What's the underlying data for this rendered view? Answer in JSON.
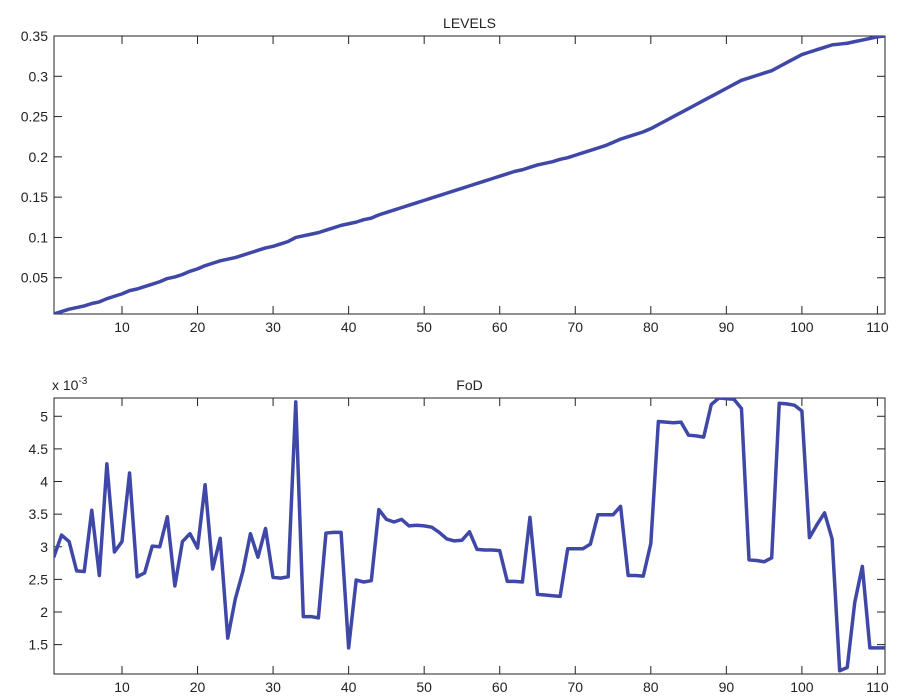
{
  "chart_data": [
    {
      "type": "line",
      "title": "LEVELS",
      "xlabel": "",
      "ylabel": "",
      "xlim": [
        1,
        111
      ],
      "ylim": [
        0.005,
        0.35
      ],
      "xticks": [
        10,
        20,
        30,
        40,
        50,
        60,
        70,
        80,
        90,
        100,
        110
      ],
      "xtick_labels": [
        "10",
        "20",
        "30",
        "40",
        "50",
        "60",
        "70",
        "80",
        "90",
        "100",
        "110"
      ],
      "yticks": [
        0.05,
        0.1,
        0.15,
        0.2,
        0.25,
        0.3,
        0.35
      ],
      "ytick_labels": [
        "0.05",
        "0.1",
        "0.15",
        "0.2",
        "0.25",
        "0.3",
        "0.35"
      ],
      "grid": false,
      "color": "#3f48a6",
      "series": [
        {
          "x": [
            1,
            2,
            3,
            4,
            5,
            6,
            7,
            8,
            9,
            10,
            11,
            12,
            13,
            14,
            15,
            16,
            17,
            18,
            19,
            20,
            21,
            22,
            23,
            24,
            25,
            26,
            27,
            28,
            29,
            30,
            31,
            32,
            33,
            34,
            35,
            36,
            37,
            38,
            39,
            40,
            41,
            42,
            43,
            44,
            45,
            46,
            47,
            48,
            49,
            50,
            51,
            52,
            53,
            54,
            55,
            56,
            57,
            58,
            59,
            60,
            61,
            62,
            63,
            64,
            65,
            66,
            67,
            68,
            69,
            70,
            71,
            72,
            73,
            74,
            75,
            76,
            77,
            78,
            79,
            80,
            81,
            82,
            83,
            84,
            85,
            86,
            87,
            88,
            89,
            90,
            91,
            92,
            93,
            94,
            95,
            96,
            97,
            98,
            99,
            100,
            101,
            102,
            103,
            104,
            105,
            106,
            107,
            108,
            109,
            110,
            111
          ],
          "y": [
            0.005,
            0.008,
            0.011,
            0.013,
            0.015,
            0.018,
            0.02,
            0.024,
            0.027,
            0.03,
            0.034,
            0.036,
            0.039,
            0.042,
            0.045,
            0.049,
            0.051,
            0.054,
            0.058,
            0.061,
            0.065,
            0.068,
            0.071,
            0.073,
            0.075,
            0.078,
            0.081,
            0.084,
            0.087,
            0.089,
            0.092,
            0.095,
            0.1,
            0.102,
            0.104,
            0.106,
            0.109,
            0.112,
            0.115,
            0.117,
            0.119,
            0.122,
            0.124,
            0.128,
            0.131,
            0.134,
            0.137,
            0.14,
            0.143,
            0.146,
            0.149,
            0.152,
            0.155,
            0.158,
            0.161,
            0.164,
            0.167,
            0.17,
            0.173,
            0.176,
            0.179,
            0.182,
            0.184,
            0.187,
            0.19,
            0.192,
            0.194,
            0.197,
            0.199,
            0.202,
            0.205,
            0.208,
            0.211,
            0.214,
            0.218,
            0.222,
            0.225,
            0.228,
            0.231,
            0.235,
            0.24,
            0.245,
            0.25,
            0.255,
            0.26,
            0.265,
            0.27,
            0.275,
            0.28,
            0.285,
            0.29,
            0.295,
            0.298,
            0.301,
            0.304,
            0.307,
            0.312,
            0.317,
            0.322,
            0.327,
            0.33,
            0.333,
            0.336,
            0.339,
            0.34,
            0.341,
            0.343,
            0.345,
            0.347,
            0.349,
            0.35
          ]
        }
      ]
    },
    {
      "type": "line",
      "title": "FoD",
      "scale_label_base": "x 10",
      "scale_label_exp": "-3",
      "xlabel": "",
      "ylabel": "",
      "xlim": [
        1,
        111
      ],
      "ylim": [
        1.05,
        5.28
      ],
      "xticks": [
        10,
        20,
        30,
        40,
        50,
        60,
        70,
        80,
        90,
        100,
        110
      ],
      "xtick_labels": [
        "10",
        "20",
        "30",
        "40",
        "50",
        "60",
        "70",
        "80",
        "90",
        "100",
        "110"
      ],
      "yticks": [
        1.5,
        2,
        2.5,
        3,
        3.5,
        4,
        4.5,
        5
      ],
      "ytick_labels": [
        "1.5",
        "2",
        "2.5",
        "3",
        "3.5",
        "4",
        "4.5",
        "5"
      ],
      "grid": false,
      "color": "#3f48a6",
      "series": [
        {
          "x": [
            1,
            2,
            3,
            4,
            5,
            6,
            7,
            8,
            9,
            10,
            11,
            12,
            13,
            14,
            15,
            16,
            17,
            18,
            19,
            20,
            21,
            22,
            23,
            24,
            25,
            26,
            27,
            28,
            29,
            30,
            31,
            32,
            33,
            34,
            35,
            36,
            37,
            38,
            39,
            40,
            41,
            42,
            43,
            44,
            45,
            46,
            47,
            48,
            49,
            50,
            51,
            52,
            53,
            54,
            55,
            56,
            57,
            58,
            59,
            60,
            61,
            62,
            63,
            64,
            65,
            66,
            67,
            68,
            69,
            70,
            71,
            72,
            73,
            74,
            75,
            76,
            77,
            78,
            79,
            80,
            81,
            82,
            83,
            84,
            85,
            86,
            87,
            88,
            89,
            90,
            91,
            92,
            93,
            94,
            95,
            96,
            97,
            98,
            99,
            100,
            101,
            102,
            103,
            104,
            105,
            106,
            107,
            108,
            109,
            110,
            111
          ],
          "y": [
            2.85,
            3.18,
            3.08,
            2.63,
            2.62,
            3.56,
            2.56,
            4.27,
            2.92,
            3.08,
            4.13,
            2.54,
            2.6,
            3.01,
            3.0,
            3.46,
            2.4,
            3.08,
            3.2,
            2.98,
            3.95,
            2.66,
            3.13,
            1.6,
            2.2,
            2.62,
            3.2,
            2.84,
            3.28,
            2.53,
            2.52,
            2.54,
            5.22,
            1.93,
            1.93,
            1.91,
            3.21,
            3.22,
            3.22,
            1.45,
            2.49,
            2.46,
            2.48,
            3.57,
            3.42,
            3.38,
            3.42,
            3.32,
            3.33,
            3.32,
            3.3,
            3.22,
            3.12,
            3.09,
            3.1,
            3.23,
            2.96,
            2.95,
            2.95,
            2.94,
            2.47,
            2.47,
            2.46,
            3.45,
            2.27,
            2.26,
            2.25,
            2.24,
            2.97,
            2.97,
            2.97,
            3.04,
            3.49,
            3.49,
            3.49,
            3.62,
            2.56,
            2.56,
            2.55,
            3.05,
            4.92,
            4.91,
            4.9,
            4.91,
            4.71,
            4.7,
            4.68,
            5.18,
            5.28,
            5.27,
            5.26,
            5.12,
            2.8,
            2.79,
            2.77,
            2.83,
            5.2,
            5.19,
            5.17,
            5.08,
            3.14,
            3.34,
            3.52,
            3.12,
            1.1,
            1.15,
            2.15,
            2.7,
            1.45,
            1.45,
            1.45
          ]
        }
      ]
    }
  ]
}
